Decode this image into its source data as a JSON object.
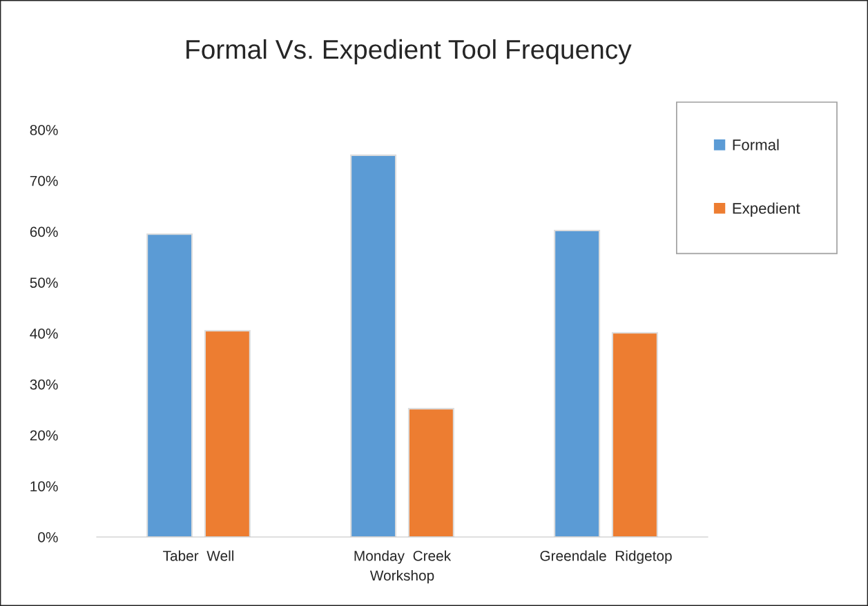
{
  "chart_data": {
    "type": "bar",
    "title": "Formal Vs. Expedient Tool Frequency",
    "categories": [
      "Taber  Well",
      "Monday  Creek\nWorkshop",
      "Greendale  Ridgetop"
    ],
    "series": [
      {
        "name": "Formal",
        "color": "#5b9bd5",
        "values": [
          59.5,
          75,
          60.2
        ]
      },
      {
        "name": "Expedient",
        "color": "#ed7d31",
        "values": [
          40.5,
          25.2,
          40.1
        ]
      }
    ],
    "ylim": [
      0,
      80
    ],
    "yticks": [
      {
        "value": 0,
        "label": "0%"
      },
      {
        "value": 10,
        "label": "10%"
      },
      {
        "value": 20,
        "label": "20%"
      },
      {
        "value": 30,
        "label": "30%"
      },
      {
        "value": 40,
        "label": "40%"
      },
      {
        "value": 50,
        "label": "50%"
      },
      {
        "value": 60,
        "label": "60%"
      },
      {
        "value": 70,
        "label": "70%"
      },
      {
        "value": 80,
        "label": "80%"
      }
    ],
    "grid": false,
    "legend": "top right"
  }
}
